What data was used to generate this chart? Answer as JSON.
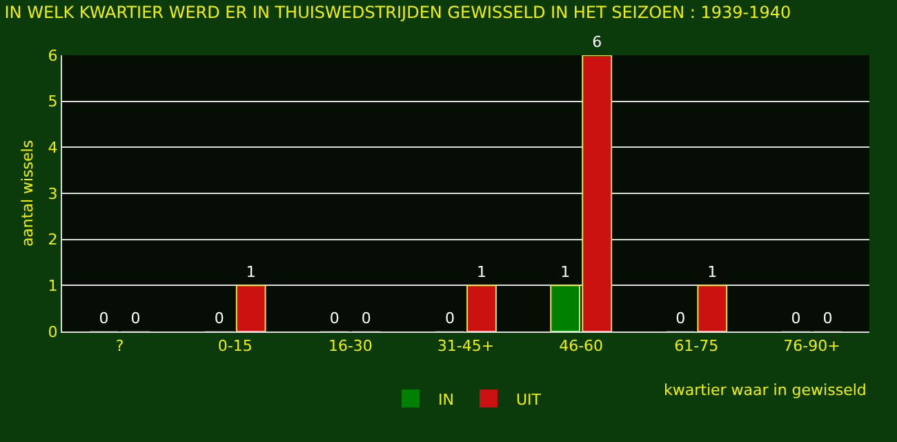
{
  "chart_data": {
    "type": "bar",
    "title": "IN WELK KWARTIER WERD ER IN THUISWEDSTRIJDEN GEWISSELD IN HET SEIZOEN : 1939-1940",
    "xlabel": "kwartier waar in gewisseld",
    "ylabel": "aantal wissels",
    "categories": [
      "?",
      "0-15",
      "16-30",
      "31-45+",
      "46-60",
      "61-75",
      "76-90+"
    ],
    "series": [
      {
        "name": "IN",
        "color": "#008000",
        "values": [
          0,
          0,
          0,
          0,
          1,
          0,
          0
        ]
      },
      {
        "name": "UIT",
        "color": "#cc1111",
        "values": [
          0,
          1,
          0,
          1,
          6,
          1,
          0
        ]
      }
    ],
    "ylim": [
      0,
      6
    ],
    "yticks": [
      0,
      1,
      2,
      3,
      4,
      5,
      6
    ],
    "grid": "y",
    "legend": "bottom",
    "data_labels": true
  }
}
